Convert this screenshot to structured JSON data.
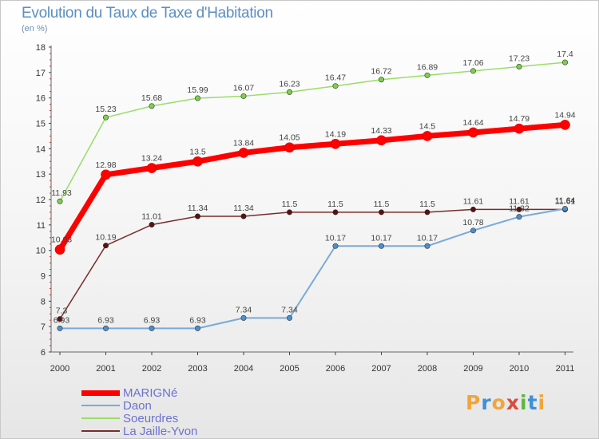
{
  "title": "Evolution du Taux de Taxe d'Habitation",
  "unit": "(en %)",
  "logo": {
    "text": [
      "P",
      "r",
      "o",
      "x",
      "i",
      "t",
      "i"
    ],
    "colors": [
      "#f0a53c",
      "#3f8fd6",
      "#f0a53c",
      "#d94c3c",
      "#5fb540",
      "#3f8fd6",
      "#f0a53c"
    ]
  },
  "chart_data": {
    "type": "line",
    "title": "Evolution du Taux de Taxe d'Habitation",
    "ylabel": "(en %)",
    "xlabel": "",
    "x": [
      "2000",
      "2001",
      "2002",
      "2003",
      "2004",
      "2005",
      "2006",
      "2007",
      "2008",
      "2009",
      "2010",
      "2011"
    ],
    "ylim": [
      6,
      18
    ],
    "yticks": [
      "6",
      "7",
      "8",
      "9",
      "10",
      "11",
      "12",
      "13",
      "14",
      "15",
      "16",
      "17",
      "18"
    ],
    "series": [
      {
        "name": "MARIGNé",
        "color": "#ff0000",
        "width": 7,
        "values": [
          10.03,
          12.98,
          13.24,
          13.5,
          13.84,
          14.05,
          14.19,
          14.33,
          14.5,
          14.64,
          14.79,
          14.94
        ],
        "labels": [
          "10.03",
          "12.98",
          "13.24",
          "13.5",
          "13.84",
          "14.05",
          "14.19",
          "14.33",
          "14.5",
          "14.64",
          "14.79",
          "14.94"
        ]
      },
      {
        "name": "Daon",
        "color": "#7aaad8",
        "width": 2,
        "values": [
          6.93,
          6.93,
          6.93,
          6.93,
          7.34,
          7.34,
          10.17,
          10.17,
          10.17,
          10.78,
          11.32,
          11.64
        ],
        "labels": [
          "6.93",
          "6.93",
          "6.93",
          "6.93",
          "7.34",
          "7.34",
          "10.17",
          "10.17",
          "10.17",
          "10.78",
          "11.32",
          "11.64"
        ]
      },
      {
        "name": "Soeurdres",
        "color": "#99dd66",
        "width": 1.5,
        "values": [
          11.93,
          15.23,
          15.68,
          15.99,
          16.07,
          16.23,
          16.47,
          16.72,
          16.89,
          17.06,
          17.23,
          17.4
        ],
        "labels": [
          "11.93",
          "15.23",
          "15.68",
          "15.99",
          "16.07",
          "16.23",
          "16.47",
          "16.72",
          "16.89",
          "17.06",
          "17.23",
          "17.4"
        ]
      },
      {
        "name": "La Jaille-Yvon",
        "color": "#7a2c2c",
        "width": 1.5,
        "values": [
          7.3,
          10.19,
          11.01,
          11.34,
          11.34,
          11.5,
          11.5,
          11.5,
          11.5,
          11.61,
          11.61,
          11.61
        ],
        "labels": [
          "7.3",
          "10.19",
          "11.01",
          "11.34",
          "11.34",
          "11.5",
          "11.5",
          "11.5",
          "11.5",
          "11.61",
          "11.61",
          "11.61"
        ]
      }
    ],
    "legend_position": "bottom-left",
    "grid": false
  }
}
